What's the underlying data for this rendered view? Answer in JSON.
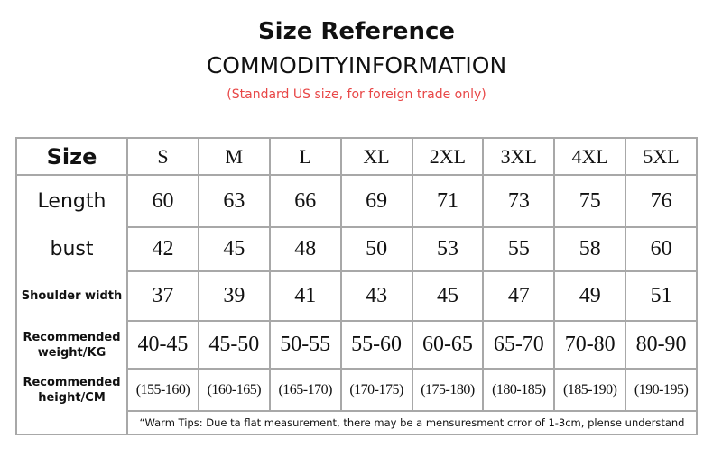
{
  "header": {
    "title": "Size Reference",
    "subtitle": "COMMODITYINFORMATION",
    "note": "(Standard US size, for foreign trade only)"
  },
  "table": {
    "columns": [
      "Size",
      "S",
      "M",
      "L",
      "XL",
      "2XL",
      "3XL",
      "4XL",
      "5XL"
    ],
    "rows": [
      [
        "Length",
        60,
        63,
        66,
        69,
        71,
        73,
        75,
        76
      ],
      [
        "bust",
        42,
        45,
        48,
        50,
        53,
        55,
        58,
        60
      ],
      [
        "Shoulder width",
        37,
        39,
        41,
        43,
        45,
        47,
        49,
        51
      ],
      [
        "Recommended weight/KG",
        "40-45",
        "45-50",
        "50-55",
        "55-60",
        "60-65",
        "65-70",
        "70-80",
        "80-90"
      ],
      [
        "Recommended height/CM",
        "(155-160)",
        "(160-165)",
        "(165-170)",
        "(170-175)",
        "(175-180)",
        "(180-185)",
        "(185-190)",
        "(190-195)"
      ]
    ],
    "tip": "“Warm Tips: Due ta flat measurement, there may be a mensuresment crror of 1-3cm, plense understand"
  }
}
